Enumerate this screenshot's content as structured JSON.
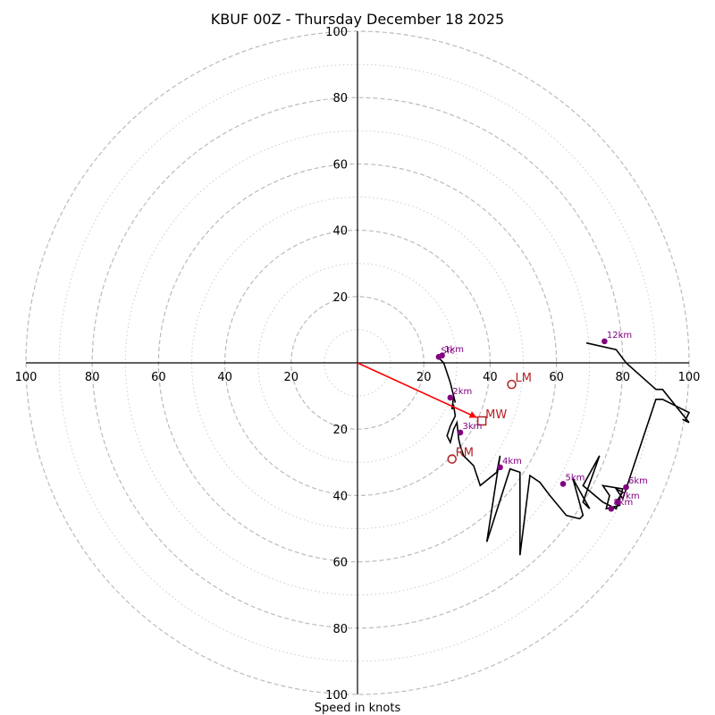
{
  "chart_data": {
    "type": "hodograph",
    "title": "KBUF 00Z - Thursday December 18 2025",
    "xlabel": "Speed in knots",
    "units": "knots",
    "range": 100,
    "major_rings": [
      20,
      40,
      60,
      80,
      100
    ],
    "minor_rings": [
      10,
      30,
      50,
      70,
      90
    ],
    "x_ticks": [
      {
        "value": -100,
        "label": "100"
      },
      {
        "value": -80,
        "label": "80"
      },
      {
        "value": -60,
        "label": "60"
      },
      {
        "value": -40,
        "label": "40"
      },
      {
        "value": -20,
        "label": "20"
      },
      {
        "value": 20,
        "label": "20"
      },
      {
        "value": 40,
        "label": "40"
      },
      {
        "value": 60,
        "label": "60"
      },
      {
        "value": 80,
        "label": "80"
      },
      {
        "value": 100,
        "label": "100"
      }
    ],
    "y_ticks": [
      {
        "value": 100,
        "label": "100"
      },
      {
        "value": 80,
        "label": "80"
      },
      {
        "value": 60,
        "label": "60"
      },
      {
        "value": 40,
        "label": "40"
      },
      {
        "value": 20,
        "label": "20"
      },
      {
        "value": -20,
        "label": "20"
      },
      {
        "value": -40,
        "label": "40"
      },
      {
        "value": -60,
        "label": "60"
      },
      {
        "value": -80,
        "label": "80"
      },
      {
        "value": -100,
        "label": "100"
      }
    ],
    "hodograph": {
      "u": [
        24.5,
        26,
        27,
        28,
        28.5,
        29,
        29.5,
        29,
        28.5,
        29,
        29.5,
        28,
        27,
        28,
        29,
        30,
        30.5,
        31,
        32,
        35,
        37,
        42,
        43,
        39,
        46,
        49,
        49,
        52,
        55,
        58,
        63,
        67,
        68,
        65,
        70,
        68,
        73,
        68,
        74,
        78,
        80,
        74,
        76,
        75,
        79,
        78,
        80,
        78,
        80,
        90,
        92,
        100,
        99,
        100,
        98,
        100,
        92,
        90,
        81,
        78,
        69
      ],
      "v": [
        1.5,
        0,
        -3,
        -6,
        -8,
        -10,
        -12,
        -10,
        -14,
        -13,
        -16,
        -19,
        -22,
        -24,
        -20,
        -18,
        -23,
        -25,
        -28,
        -31,
        -37,
        -33,
        -28,
        -54,
        -32,
        -33,
        -58,
        -34,
        -36,
        -40,
        -46,
        -47,
        -46,
        -35,
        -44,
        -42,
        -28,
        -37,
        -42,
        -44,
        -38,
        -37,
        -40,
        -44,
        -43,
        -42,
        -39,
        -38,
        -41,
        -11,
        -11,
        -15,
        -17,
        -18,
        -17,
        -18,
        -8,
        -8,
        0,
        4,
        6
      ]
    },
    "height_markers": [
      {
        "label": "Sfc",
        "u": 24.5,
        "v": 1.8
      },
      {
        "label": "1km",
        "u": 25.5,
        "v": 2.2
      },
      {
        "label": "2km",
        "u": 28,
        "v": -10.5
      },
      {
        "label": "3km",
        "u": 31,
        "v": -21
      },
      {
        "label": "4km",
        "u": 43,
        "v": -31.5
      },
      {
        "label": "5km",
        "u": 62,
        "v": -36.5
      },
      {
        "label": "6km",
        "u": 81,
        "v": -37.5
      },
      {
        "label": "7km",
        "u": 78.5,
        "v": -42
      },
      {
        "label": "8km",
        "u": 76.5,
        "v": -44
      },
      {
        "label": "12km",
        "u": 74.5,
        "v": 6.5
      }
    ],
    "storm_motions": [
      {
        "label": "LM",
        "u": 46.5,
        "v": -6.5,
        "marker": "circle"
      },
      {
        "label": "MW",
        "u": 37.5,
        "v": -17.5,
        "marker": "square"
      },
      {
        "label": "RM",
        "u": 28.5,
        "v": -29,
        "marker": "circle"
      }
    ],
    "shear_vector": {
      "from": [
        0,
        0
      ],
      "to": [
        36,
        -16.5
      ]
    },
    "colors": {
      "hodograph": "#000000",
      "height_markers": "#800080",
      "storm_motion": "#b22222",
      "shear_vector": "#ff0000",
      "rings": "#bbbbbb"
    }
  }
}
